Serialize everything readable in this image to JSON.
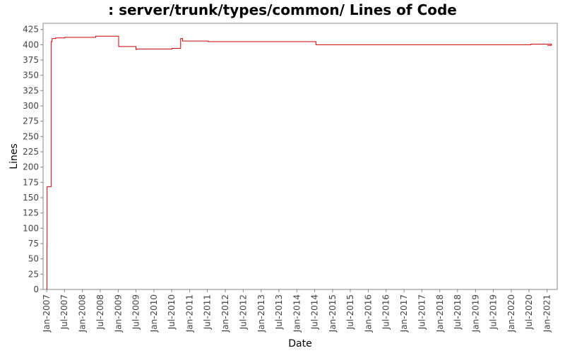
{
  "title": ": server/trunk/types/common/ Lines of Code",
  "chart_data": {
    "type": "line",
    "title": ": server/trunk/types/common/ Lines of Code",
    "xlabel": "Date",
    "ylabel": "Lines",
    "ylim": [
      0,
      435
    ],
    "y_ticks": [
      0,
      25,
      50,
      75,
      100,
      125,
      150,
      175,
      200,
      225,
      250,
      275,
      300,
      325,
      350,
      375,
      400,
      425
    ],
    "xlim": [
      "2006-11-25",
      "2021-04-15"
    ],
    "x_ticks": [
      {
        "label": "Jan-2007",
        "date": "2007-01-01"
      },
      {
        "label": "Jul-2007",
        "date": "2007-07-01"
      },
      {
        "label": "Jan-2008",
        "date": "2008-01-01"
      },
      {
        "label": "Jul-2008",
        "date": "2008-07-01"
      },
      {
        "label": "Jan-2009",
        "date": "2009-01-01"
      },
      {
        "label": "Jul-2009",
        "date": "2009-07-01"
      },
      {
        "label": "Jan-2010",
        "date": "2010-01-01"
      },
      {
        "label": "Jul-2010",
        "date": "2010-07-01"
      },
      {
        "label": "Jan-2011",
        "date": "2011-01-01"
      },
      {
        "label": "Jul-2011",
        "date": "2011-07-01"
      },
      {
        "label": "Jan-2012",
        "date": "2012-01-01"
      },
      {
        "label": "Jul-2012",
        "date": "2012-07-01"
      },
      {
        "label": "Jan-2013",
        "date": "2013-01-01"
      },
      {
        "label": "Jul-2013",
        "date": "2013-07-01"
      },
      {
        "label": "Jan-2014",
        "date": "2014-01-01"
      },
      {
        "label": "Jul-2014",
        "date": "2014-07-01"
      },
      {
        "label": "Jan-2015",
        "date": "2015-01-01"
      },
      {
        "label": "Jul-2015",
        "date": "2015-07-01"
      },
      {
        "label": "Jan-2016",
        "date": "2016-01-01"
      },
      {
        "label": "Jul-2016",
        "date": "2016-07-01"
      },
      {
        "label": "Jan-2017",
        "date": "2017-01-01"
      },
      {
        "label": "Jul-2017",
        "date": "2017-07-01"
      },
      {
        "label": "Jan-2018",
        "date": "2018-01-01"
      },
      {
        "label": "Jul-2018",
        "date": "2018-07-01"
      },
      {
        "label": "Jan-2019",
        "date": "2019-01-01"
      },
      {
        "label": "Jul-2019",
        "date": "2019-07-01"
      },
      {
        "label": "Jan-2020",
        "date": "2020-01-01"
      },
      {
        "label": "Jul-2020",
        "date": "2020-07-01"
      },
      {
        "label": "Jan-2021",
        "date": "2021-01-01"
      }
    ],
    "grid": false,
    "legend": "none",
    "line_color": "#cc0000",
    "step": true,
    "series": [
      {
        "points": [
          {
            "x": "2007-01-02",
            "y": 0
          },
          {
            "x": "2007-01-03",
            "y": 70
          },
          {
            "x": "2007-01-05",
            "y": 168
          },
          {
            "x": "2007-02-15",
            "y": 405
          },
          {
            "x": "2007-02-25",
            "y": 410
          },
          {
            "x": "2007-04-01",
            "y": 411
          },
          {
            "x": "2007-07-05",
            "y": 412
          },
          {
            "x": "2008-05-15",
            "y": 414
          },
          {
            "x": "2009-01-05",
            "y": 397
          },
          {
            "x": "2009-07-01",
            "y": 392
          },
          {
            "x": "2009-07-05",
            "y": 393
          },
          {
            "x": "2010-07-05",
            "y": 394
          },
          {
            "x": "2010-10-01",
            "y": 410
          },
          {
            "x": "2010-10-20",
            "y": 406
          },
          {
            "x": "2011-07-10",
            "y": 405
          },
          {
            "x": "2014-07-15",
            "y": 400
          },
          {
            "x": "2020-07-20",
            "y": 401
          },
          {
            "x": "2021-02-15",
            "y": 399
          }
        ]
      }
    ]
  }
}
